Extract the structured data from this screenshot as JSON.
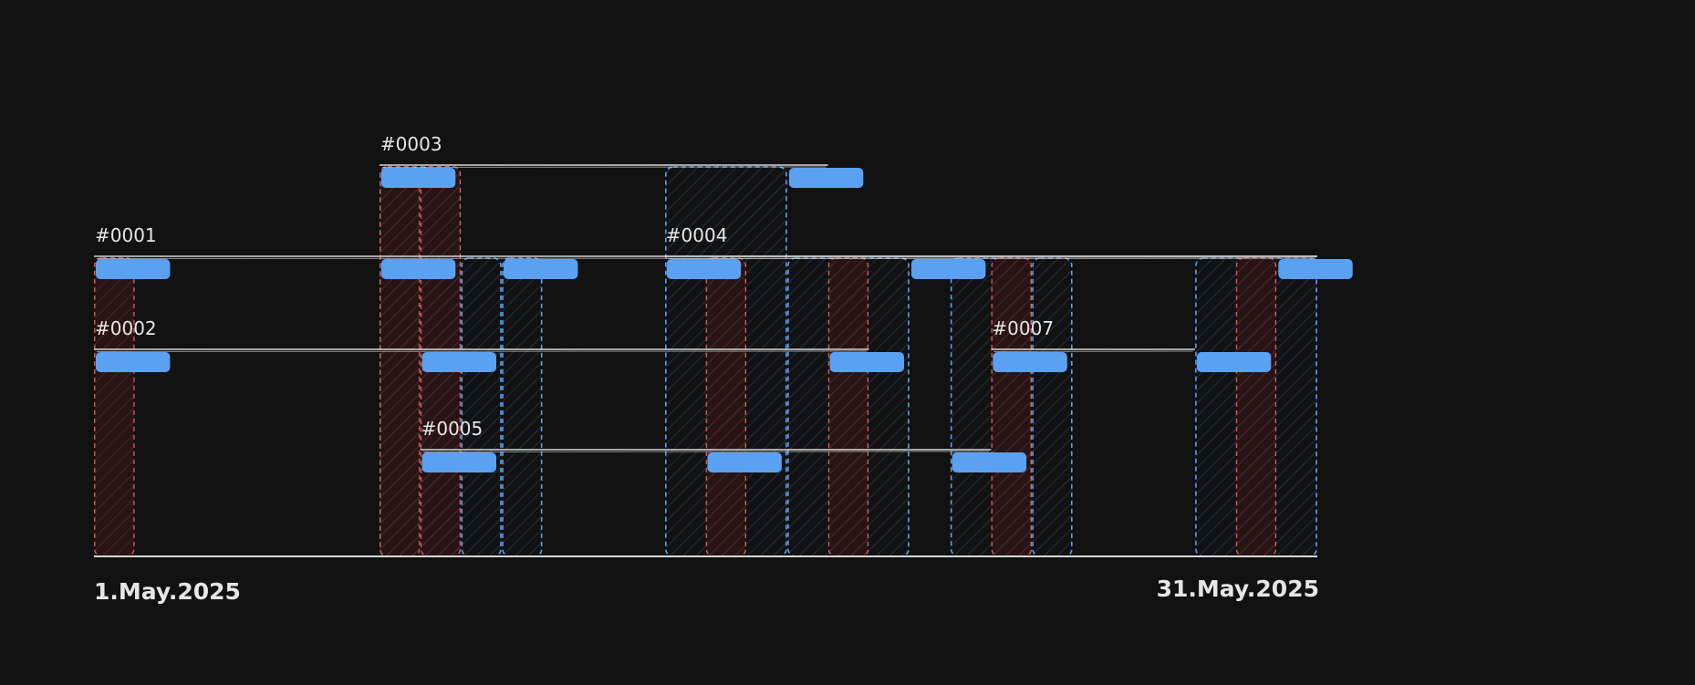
{
  "timeline": {
    "start_label": "1.May.2025",
    "end_label": "31.May.2025",
    "start_day": 1,
    "end_day": 31
  },
  "colors": {
    "background": "#121212",
    "blue": "#5aa1f2",
    "red": "#f26a6a",
    "line": "#d8d8d8",
    "label": "#e6e6e6"
  },
  "rows": [
    {
      "label": "#0001",
      "level": 2,
      "start": 1,
      "end": 31,
      "markers": [
        1,
        8,
        11,
        21,
        30
      ]
    },
    {
      "label": "#0002",
      "level": 3,
      "start": 1,
      "end": 20,
      "markers": [
        1,
        9,
        19
      ]
    },
    {
      "label": "#0003",
      "level": 1,
      "start": 8,
      "end": 19,
      "markers": [
        8,
        18
      ]
    },
    {
      "label": "#0004",
      "level": 2,
      "start": 15,
      "end": 31,
      "markers": [
        15
      ]
    },
    {
      "label": "#0005",
      "level": 4,
      "start": 9,
      "end": 23,
      "markers": [
        9,
        16,
        22
      ]
    },
    {
      "label": "#0007",
      "level": 3,
      "start": 23,
      "end": 28,
      "markers": [
        23,
        28
      ]
    }
  ],
  "columns": [
    {
      "type": "red",
      "from": 1,
      "to": 2
    },
    {
      "type": "blue",
      "from": 8,
      "to": 10
    },
    {
      "type": "red",
      "from": 8,
      "to": 9
    },
    {
      "type": "red",
      "from": 9,
      "to": 10
    },
    {
      "type": "blue",
      "from": 10,
      "to": 11
    },
    {
      "type": "blue",
      "from": 11,
      "to": 12
    },
    {
      "type": "blue",
      "from": 15,
      "to": 18
    },
    {
      "type": "red",
      "from": 16,
      "to": 17
    },
    {
      "type": "blue",
      "from": 18,
      "to": 21
    },
    {
      "type": "red",
      "from": 19,
      "to": 20
    },
    {
      "type": "blue",
      "from": 22,
      "to": 24
    },
    {
      "type": "red",
      "from": 23,
      "to": 24
    },
    {
      "type": "blue",
      "from": 24,
      "to": 25
    },
    {
      "type": "blue",
      "from": 28,
      "to": 31
    },
    {
      "type": "red",
      "from": 29,
      "to": 30
    }
  ]
}
